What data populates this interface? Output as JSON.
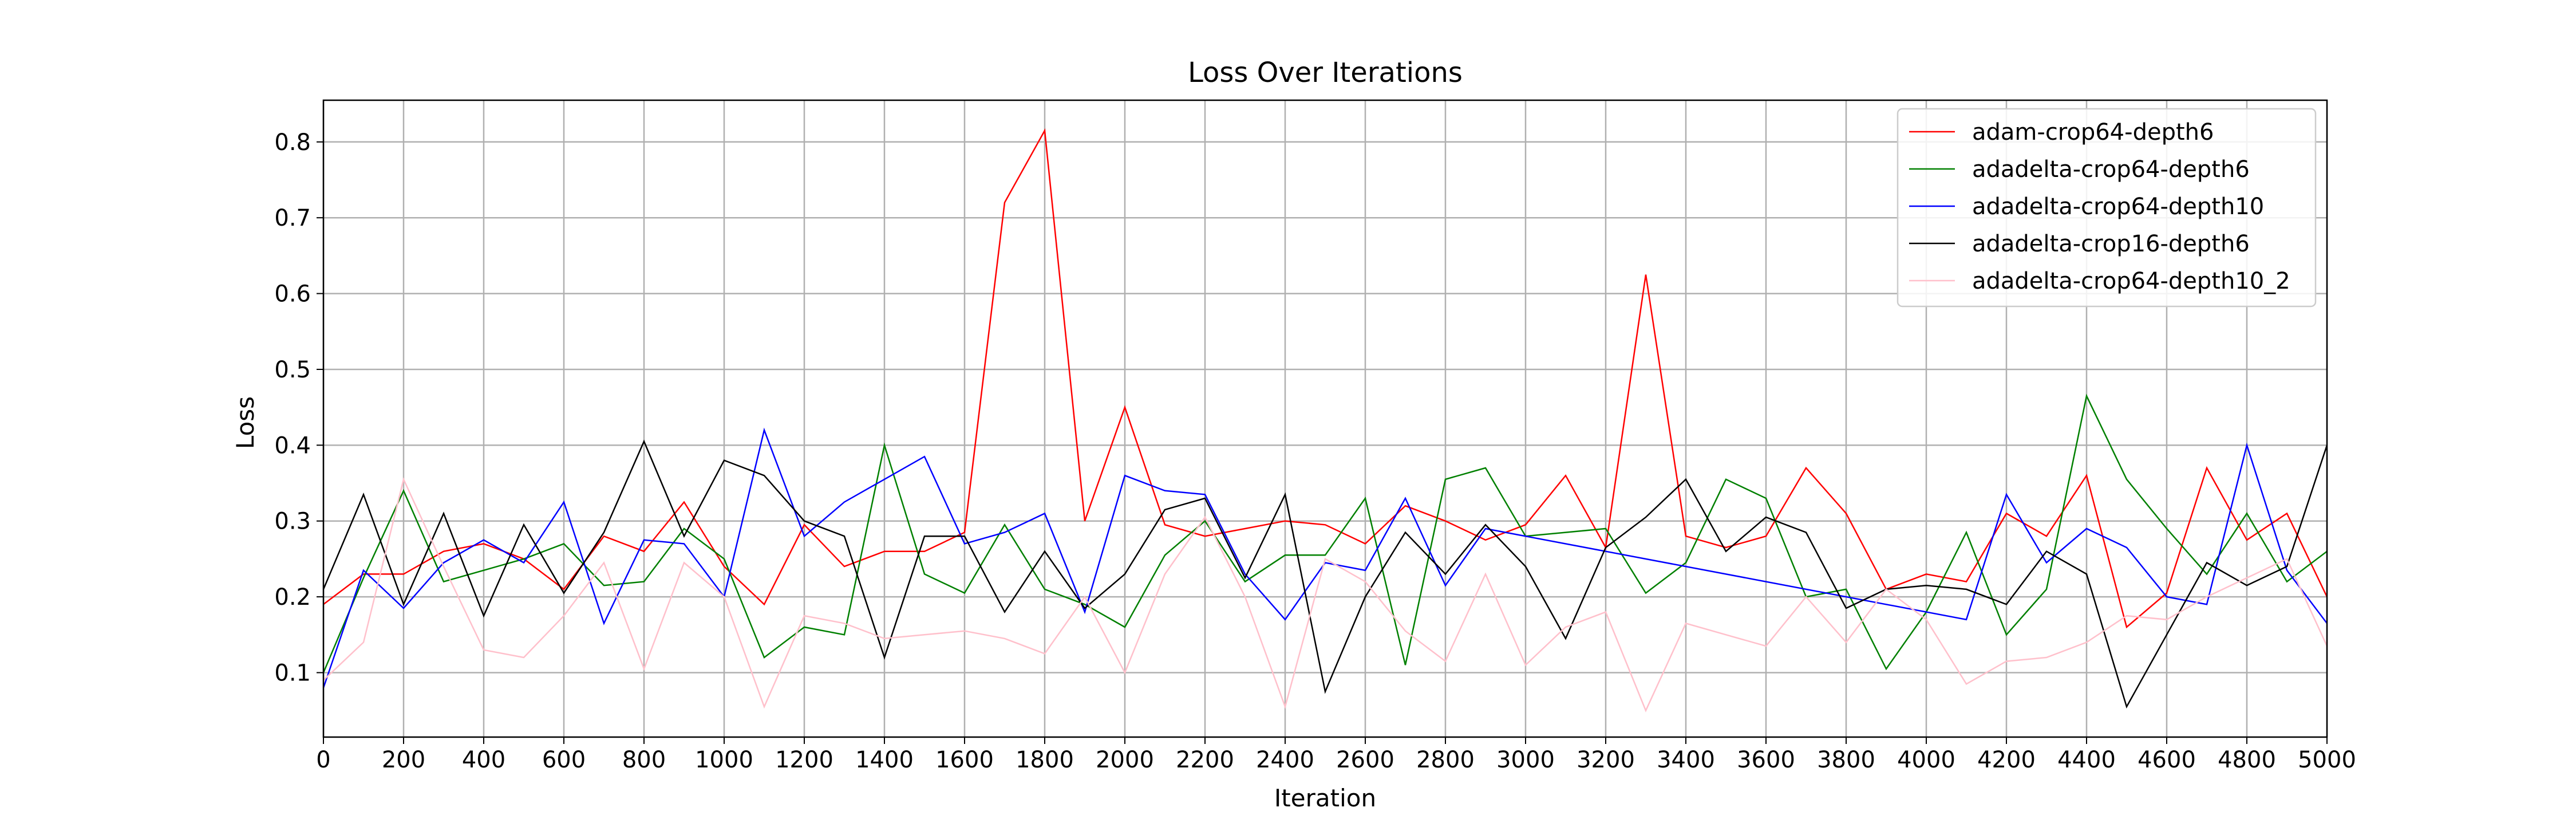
{
  "chart_data": {
    "type": "line",
    "title": "Loss Over Iterations",
    "xlabel": "Iteration",
    "ylabel": "Loss",
    "xlim": [
      0,
      5000
    ],
    "ylim": [
      0.015,
      0.855
    ],
    "xticks": [
      0,
      200,
      400,
      600,
      800,
      1000,
      1200,
      1400,
      1600,
      1800,
      2000,
      2200,
      2400,
      2600,
      2800,
      3000,
      3200,
      3400,
      3600,
      3800,
      4000,
      4200,
      4400,
      4600,
      4800,
      5000
    ],
    "yticks": [
      0.1,
      0.2,
      0.3,
      0.4,
      0.5,
      0.6,
      0.7,
      0.8
    ],
    "grid": true,
    "legend_position": "top-right",
    "series": [
      {
        "name": "adam-crop64-depth6",
        "color": "#ff0000",
        "x": [
          0,
          100,
          200,
          300,
          400,
          500,
          600,
          700,
          800,
          900,
          1000,
          1100,
          1200,
          1300,
          1400,
          1500,
          1600,
          1700,
          1800,
          1900,
          2000,
          2100,
          2200,
          2300,
          2400,
          2500,
          2600,
          2700,
          2800,
          2900,
          3000,
          3100,
          3200,
          3300,
          3400,
          3500,
          3600,
          3700,
          3800,
          3900,
          4000,
          4100,
          4200,
          4300,
          4400,
          4500,
          4600,
          4700,
          4800,
          4900,
          5000
        ],
        "y": [
          0.19,
          0.23,
          0.23,
          0.26,
          0.27,
          0.25,
          0.21,
          0.28,
          0.26,
          0.325,
          0.24,
          0.19,
          0.295,
          0.24,
          0.26,
          0.26,
          0.285,
          0.72,
          0.815,
          0.3,
          0.45,
          0.295,
          0.28,
          0.29,
          0.3,
          0.295,
          0.27,
          0.32,
          0.3,
          0.275,
          0.295,
          0.36,
          0.265,
          0.625,
          0.28,
          0.265,
          0.28,
          0.37,
          0.31,
          0.21,
          0.23,
          0.22,
          0.31,
          0.28,
          0.36,
          0.16,
          0.205,
          0.37,
          0.275,
          0.31,
          0.2
        ]
      },
      {
        "name": "adadelta-crop64-depth6",
        "color": "#008000",
        "x": [
          0,
          100,
          200,
          300,
          400,
          500,
          600,
          700,
          800,
          900,
          1000,
          1100,
          1200,
          1300,
          1400,
          1500,
          1600,
          1700,
          1800,
          1900,
          2000,
          2100,
          2200,
          2300,
          2400,
          2500,
          2600,
          2700,
          2800,
          2900,
          3000,
          3100,
          3200,
          3300,
          3400,
          3500,
          3600,
          3700,
          3800,
          3900,
          4000,
          4100,
          4200,
          4300,
          4400,
          4500,
          4600,
          4700,
          4800,
          4900,
          5000
        ],
        "y": [
          0.1,
          0.225,
          0.34,
          0.22,
          0.235,
          0.25,
          0.27,
          0.215,
          0.22,
          0.29,
          0.25,
          0.12,
          0.16,
          0.15,
          0.4,
          0.23,
          0.205,
          0.295,
          0.21,
          0.19,
          0.16,
          0.255,
          0.3,
          0.22,
          0.255,
          0.255,
          0.33,
          0.11,
          0.355,
          0.37,
          0.28,
          0.285,
          0.29,
          0.205,
          0.245,
          0.355,
          0.33,
          0.2,
          0.21,
          0.105,
          0.18,
          0.285,
          0.15,
          0.21,
          0.465,
          0.355,
          0.29,
          0.23,
          0.31,
          0.22,
          0.26
        ]
      },
      {
        "name": "adadelta-crop64-depth10",
        "color": "#0000ff",
        "x": [
          0,
          100,
          200,
          300,
          400,
          500,
          600,
          700,
          800,
          900,
          1000,
          1100,
          1200,
          1300,
          1400,
          1500,
          1600,
          1700,
          1800,
          1900,
          2000,
          2100,
          2200,
          2300,
          2400,
          2500,
          2600,
          2700,
          2800,
          2900,
          4100,
          4200,
          4300,
          4400,
          4500,
          4600,
          4700,
          4800,
          4900,
          5000
        ],
        "y": [
          0.08,
          0.235,
          0.185,
          0.245,
          0.275,
          0.245,
          0.325,
          0.165,
          0.275,
          0.27,
          0.2,
          0.42,
          0.28,
          0.325,
          0.355,
          0.385,
          0.27,
          0.285,
          0.31,
          0.18,
          0.36,
          0.34,
          0.335,
          0.23,
          0.17,
          0.245,
          0.235,
          0.33,
          0.215,
          0.29,
          0.17,
          0.335,
          0.245,
          0.29,
          0.265,
          0.2,
          0.19,
          0.4,
          0.235,
          0.165
        ]
      },
      {
        "name": "adadelta-crop16-depth6",
        "color": "#000000",
        "x": [
          0,
          100,
          200,
          300,
          400,
          500,
          600,
          700,
          800,
          900,
          1000,
          1100,
          1200,
          1300,
          1400,
          1500,
          1600,
          1700,
          1800,
          1900,
          2000,
          2100,
          2200,
          2300,
          2400,
          2500,
          2600,
          2700,
          2800,
          2900,
          3000,
          3100,
          3200,
          3300,
          3400,
          3500,
          3600,
          3700,
          3800,
          3900,
          4000,
          4100,
          4200,
          4300,
          4400,
          4500,
          4600,
          4700,
          4800,
          4900,
          5000
        ],
        "y": [
          0.21,
          0.335,
          0.19,
          0.31,
          0.175,
          0.295,
          0.205,
          0.285,
          0.405,
          0.28,
          0.38,
          0.36,
          0.3,
          0.28,
          0.12,
          0.28,
          0.28,
          0.18,
          0.26,
          0.185,
          0.23,
          0.315,
          0.33,
          0.225,
          0.335,
          0.075,
          0.2,
          0.285,
          0.23,
          0.295,
          0.24,
          0.145,
          0.265,
          0.305,
          0.355,
          0.26,
          0.305,
          0.285,
          0.185,
          0.21,
          0.215,
          0.21,
          0.19,
          0.26,
          0.23,
          0.055,
          0.15,
          0.245,
          0.215,
          0.24,
          0.4
        ]
      },
      {
        "name": "adadelta-crop64-depth10_2",
        "color": "#ffc0cb",
        "x": [
          0,
          100,
          200,
          300,
          400,
          500,
          600,
          700,
          800,
          900,
          1000,
          1100,
          1200,
          1300,
          1400,
          1500,
          1600,
          1700,
          1800,
          1900,
          2000,
          2100,
          2200,
          2300,
          2400,
          2500,
          2600,
          2700,
          2800,
          2900,
          3000,
          3100,
          3200,
          3300,
          3400,
          3500,
          3600,
          3700,
          3800,
          3900,
          4000,
          4100,
          4200,
          4300,
          4400,
          4500,
          4600,
          4700,
          4800,
          4900,
          5000
        ],
        "y": [
          0.09,
          0.14,
          0.355,
          0.24,
          0.13,
          0.12,
          0.175,
          0.245,
          0.105,
          0.245,
          0.2,
          0.055,
          0.175,
          0.165,
          0.145,
          0.15,
          0.155,
          0.145,
          0.125,
          0.2,
          0.1,
          0.23,
          0.305,
          0.2,
          0.055,
          0.25,
          0.22,
          0.155,
          0.115,
          0.23,
          0.11,
          0.16,
          0.18,
          0.05,
          0.165,
          0.15,
          0.135,
          0.2,
          0.14,
          0.21,
          0.17,
          0.085,
          0.115,
          0.12,
          0.14,
          0.175,
          0.17,
          0.2,
          0.225,
          0.25,
          0.135
        ]
      }
    ]
  }
}
